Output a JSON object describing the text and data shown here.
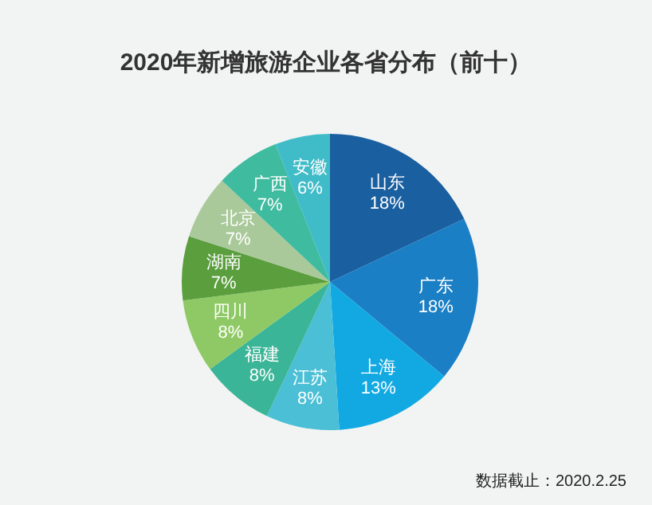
{
  "chart_data": {
    "type": "pie",
    "title": "2020年新增旅游企业各省分布（前十）",
    "categories": [
      "山东",
      "广东",
      "上海",
      "江苏",
      "福建",
      "四川",
      "湖南",
      "北京",
      "广西",
      "安徽"
    ],
    "values": [
      18,
      18,
      13,
      8,
      8,
      8,
      7,
      7,
      7,
      6
    ],
    "value_labels": [
      "18%",
      "18%",
      "13%",
      "8%",
      "8%",
      "8%",
      "7%",
      "7%",
      "7%",
      "6%"
    ],
    "colors": [
      "#1a5fa0",
      "#1a7fc4",
      "#12a9e3",
      "#4bbfd6",
      "#3bb597",
      "#8fc965",
      "#5a9e3e",
      "#a9c99a",
      "#3fbb9f",
      "#40bcc9"
    ],
    "annotations": [
      "数据截止：2020.2.25"
    ]
  }
}
